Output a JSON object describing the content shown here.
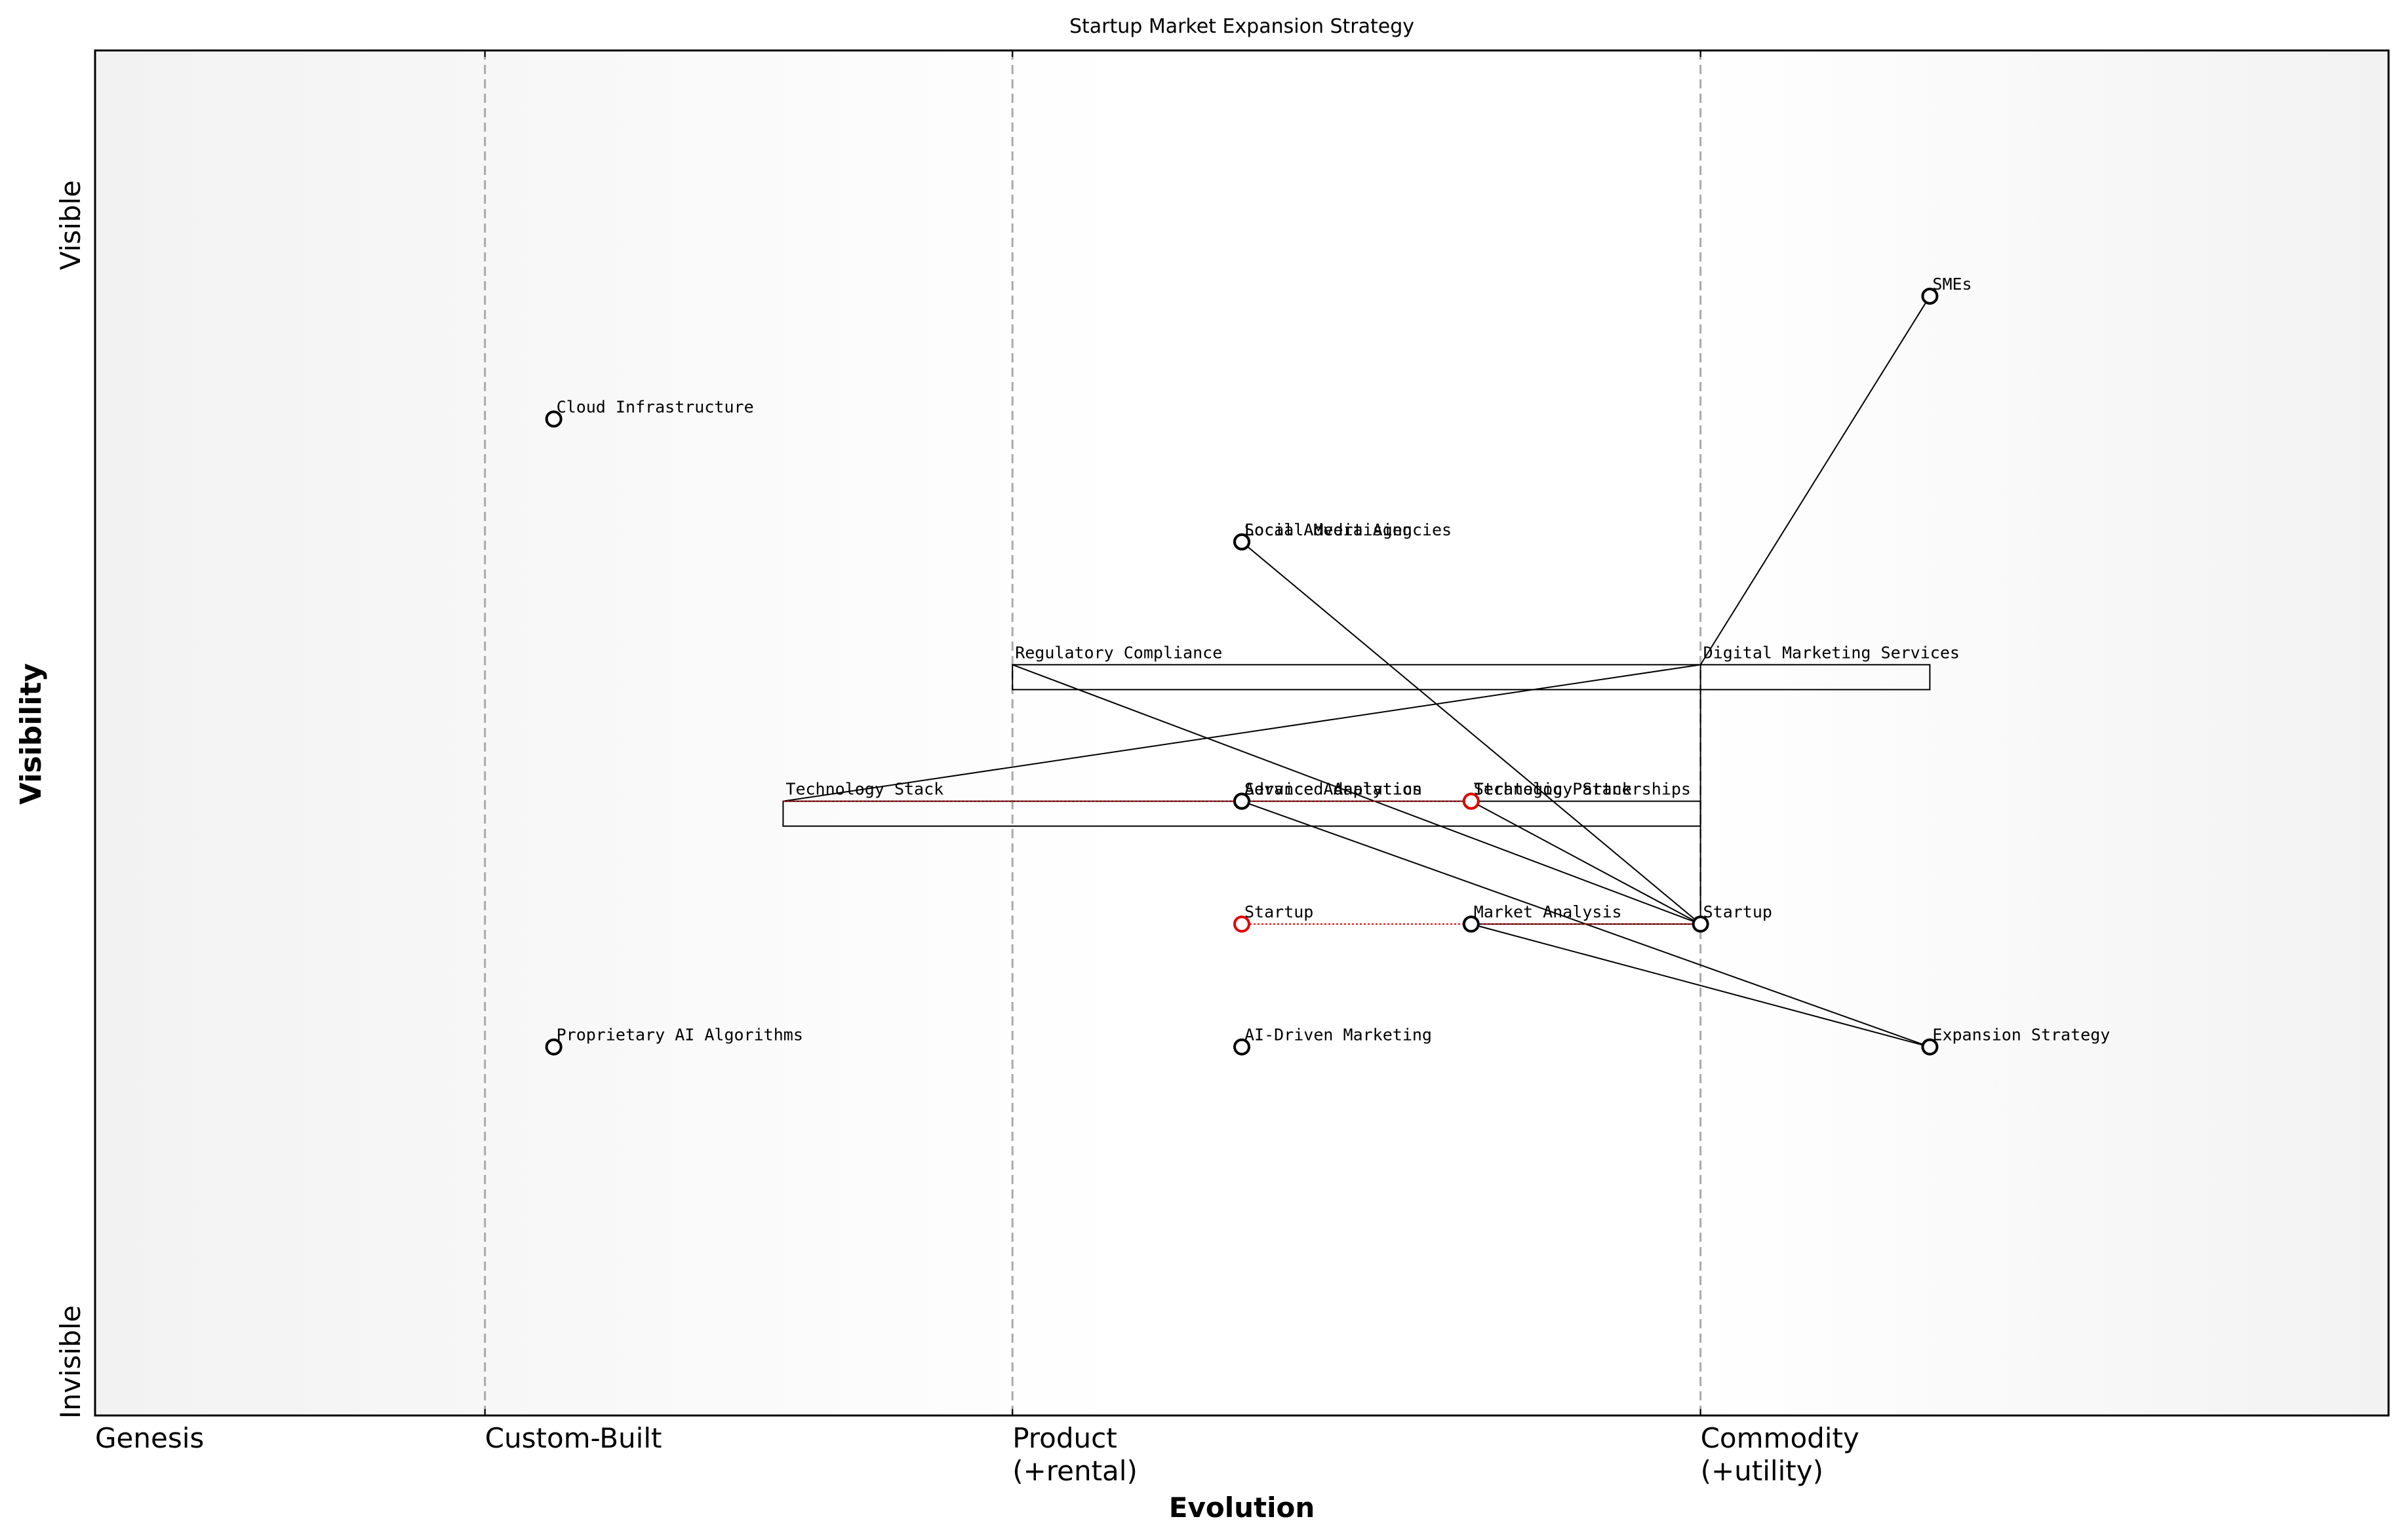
{
  "chart_data": {
    "type": "wardley",
    "title": "Startup Market Expansion Strategy",
    "xlabel": "Evolution",
    "ylabel": "Visibility",
    "visibility_labels": {
      "top": "Visible",
      "bottom": "Invisible"
    },
    "xlim": [
      0,
      1
    ],
    "ylim": [
      0,
      1
    ],
    "xticks": [
      {
        "value": 0,
        "label": "Genesis"
      },
      {
        "value": 0.17,
        "label": "Custom-Built"
      },
      {
        "value": 0.4,
        "label": "Product\n(+rental)"
      },
      {
        "value": 0.7,
        "label": "Commodity\n(+utility)"
      }
    ],
    "node_color": "#000000",
    "link_color": "#000000",
    "evolution_color": "#e00000",
    "nodes": [
      {
        "name": "SMEs",
        "evolution": 0.8,
        "visibility": 0.82
      },
      {
        "name": "Cloud Infrastructure",
        "evolution": 0.2,
        "visibility": 0.73
      },
      {
        "name": "Local Advertising",
        "evolution": 0.5,
        "visibility": 0.64
      },
      {
        "name": "Social Media Agencies",
        "evolution": 0.5,
        "visibility": 0.64
      },
      {
        "name": "Regulatory Compliance",
        "evolution": 0.4,
        "visibility": 0.55,
        "circle": false
      },
      {
        "name": "Digital Marketing Services",
        "evolution": 0.7,
        "visibility": 0.55,
        "circle": false
      },
      {
        "name": "Technology Stack",
        "evolution": 0.3,
        "visibility": 0.45,
        "circle": false
      },
      {
        "name": "Advanced Analytics",
        "evolution": 0.5,
        "visibility": 0.45
      },
      {
        "name": "Service Adaptation",
        "evolution": 0.5,
        "visibility": 0.45
      },
      {
        "name": "Strategic Partnerships",
        "evolution": 0.6,
        "visibility": 0.45
      },
      {
        "name": "Technology Stack",
        "evolution": 0.6,
        "visibility": 0.45,
        "color": "#e00000"
      },
      {
        "name": "Startup",
        "evolution": 0.5,
        "visibility": 0.36,
        "color": "#e00000"
      },
      {
        "name": "Market Analysis",
        "evolution": 0.6,
        "visibility": 0.36
      },
      {
        "name": "Startup",
        "evolution": 0.7,
        "visibility": 0.36
      },
      {
        "name": "Proprietary AI Algorithms",
        "evolution": 0.2,
        "visibility": 0.27
      },
      {
        "name": "AI-Driven Marketing",
        "evolution": 0.5,
        "visibility": 0.27
      },
      {
        "name": "Expansion Strategy",
        "evolution": 0.8,
        "visibility": 0.27
      }
    ],
    "links": [
      [
        0,
        5
      ],
      [
        2,
        13
      ],
      [
        4,
        13
      ],
      [
        6,
        5
      ],
      [
        7,
        16
      ],
      [
        12,
        16
      ],
      [
        12,
        13
      ],
      [
        9,
        13
      ],
      [
        5,
        13
      ]
    ],
    "evolutions": [
      [
        6,
        10
      ],
      [
        11,
        13
      ]
    ],
    "pipelines": [
      {
        "node": 5,
        "from": 0.4,
        "to": 0.8
      },
      {
        "node": 6,
        "from": 0.3,
        "to": 0.7
      }
    ]
  }
}
